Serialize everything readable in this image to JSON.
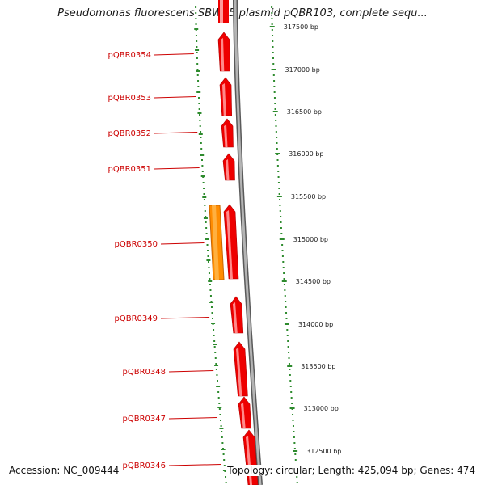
{
  "title": "Pseudomonas fluorescens SBW25 plasmid pQBR103, complete sequ...",
  "accession": "Accession: NC_009444",
  "summary": "Topology: circular; Length: 425,094 bp; Genes: 474",
  "colors": {
    "gene": "#ee0000",
    "gene_alt": "#ff8c00",
    "backbone": "#888888",
    "tick": "#2e8b2e",
    "label": "#cc0000"
  },
  "genes": [
    {
      "label": "pQBR0354",
      "strand": "minus",
      "color": "red"
    },
    {
      "label": "pQBR0353",
      "strand": "minus",
      "color": "red"
    },
    {
      "label": "pQBR0352",
      "strand": "minus",
      "color": "red"
    },
    {
      "label": "pQBR0351",
      "strand": "minus",
      "color": "red"
    },
    {
      "label": "pQBR0350",
      "strand": "minus",
      "color": "red"
    },
    {
      "label": "pQBR0349",
      "strand": "minus",
      "color": "red"
    },
    {
      "label": "pQBR0348",
      "strand": "minus",
      "color": "red"
    },
    {
      "label": "pQBR0347",
      "strand": "minus",
      "color": "red"
    },
    {
      "label": "pQBR0346",
      "strand": "minus",
      "color": "red"
    }
  ],
  "ticks": [
    "317500 bp",
    "317000 bp",
    "316500 bp",
    "316000 bp",
    "315500 bp",
    "315000 bp",
    "314500 bp",
    "314000 bp",
    "313500 bp",
    "313000 bp",
    "312500 bp"
  ]
}
